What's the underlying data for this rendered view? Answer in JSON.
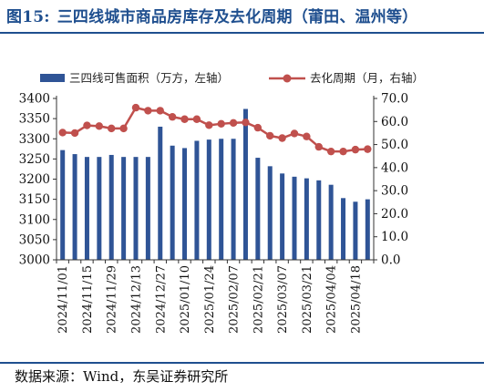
{
  "figure": {
    "number": "图15:",
    "title": "三四线城市商品房库存及去化周期（莆田、温州等）",
    "source": "数据来源：Wind，东吴证券研究所"
  },
  "chart_data": {
    "type": "bar+line",
    "x": [
      "2024/11/01",
      "2024/11/08",
      "2024/11/15",
      "2024/11/22",
      "2024/11/29",
      "2024/12/06",
      "2024/12/13",
      "2024/12/20",
      "2024/12/27",
      "2025/01/03",
      "2025/01/10",
      "2025/01/17",
      "2025/01/24",
      "2025/01/31",
      "2025/02/07",
      "2025/02/14",
      "2025/02/21",
      "2025/02/28",
      "2025/03/07",
      "2025/03/14",
      "2025/03/21",
      "2025/03/28",
      "2025/04/04",
      "2025/04/11",
      "2025/04/18",
      "2025/04/25"
    ],
    "x_tick_labels": [
      "2024/11/01",
      "2024/11/15",
      "2024/11/29",
      "2024/12/13",
      "2024/12/27",
      "2025/01/10",
      "2025/01/24",
      "2025/02/07",
      "2025/02/21",
      "2025/03/07",
      "2025/03/21",
      "2025/04/04",
      "2025/04/18"
    ],
    "series": [
      {
        "name": "三四线可售面积（万方，左轴）",
        "type": "bar",
        "axis": "left",
        "color": "#2f5496",
        "values": [
          3272,
          3262,
          3255,
          3255,
          3260,
          3255,
          3255,
          3255,
          3330,
          3283,
          3277,
          3295,
          3298,
          3300,
          3300,
          3374,
          3253,
          3232,
          3214,
          3206,
          3202,
          3197,
          3186,
          3153,
          3144,
          3150
        ]
      },
      {
        "name": "去化周期（月，右轴）",
        "type": "line",
        "axis": "right",
        "color": "#c0504d",
        "values": [
          55.2,
          55.0,
          58.3,
          58.0,
          57.0,
          57.0,
          66.0,
          64.7,
          64.7,
          62.0,
          61.0,
          61.0,
          58.4,
          59.0,
          59.4,
          59.6,
          57.3,
          53.8,
          52.8,
          54.8,
          53.5,
          49.0,
          47.0,
          47.0,
          47.8,
          48.0
        ]
      }
    ],
    "y_left": {
      "min": 3000,
      "max": 3400,
      "step": 50,
      "tick_labels": [
        "3000",
        "3050",
        "3100",
        "3150",
        "3200",
        "3250",
        "3300",
        "3350",
        "3400"
      ]
    },
    "y_right": {
      "min": 0,
      "max": 70,
      "step": 10,
      "tick_labels": [
        "0.0",
        "10.0",
        "20.0",
        "30.0",
        "40.0",
        "50.0",
        "60.0",
        "70.0"
      ]
    },
    "legend_position": "top",
    "grid": false
  }
}
